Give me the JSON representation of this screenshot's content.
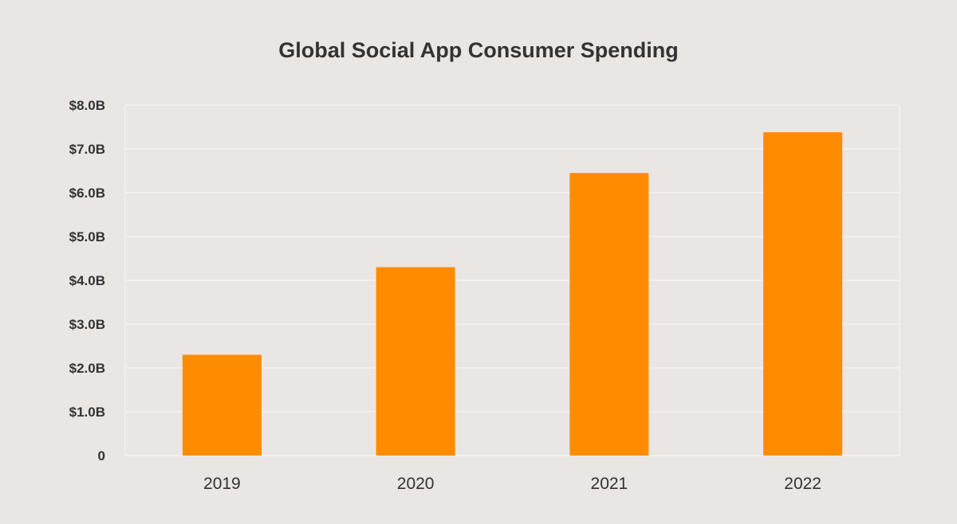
{
  "chart_data": {
    "type": "bar",
    "title": "Global Social App Consumer Spending",
    "xlabel": "",
    "ylabel": "",
    "categories": [
      "2019",
      "2020",
      "2021",
      "2022"
    ],
    "values": [
      2.3,
      4.3,
      6.45,
      7.38
    ],
    "ylim": [
      0,
      8
    ],
    "y_ticks": [
      0,
      1,
      2,
      3,
      4,
      5,
      6,
      7,
      8
    ],
    "y_tick_labels": [
      "0",
      "$1.0B",
      "$2.0B",
      "$3.0B",
      "$4.0B",
      "$5.0B",
      "$6.0B",
      "$7.0B",
      "$8.0B"
    ],
    "grid": true,
    "legend": "none",
    "colors": {
      "bar": "#ff8c00",
      "background": "#e9e6e3",
      "grid": "#f5f3f1",
      "text": "#333333"
    }
  }
}
